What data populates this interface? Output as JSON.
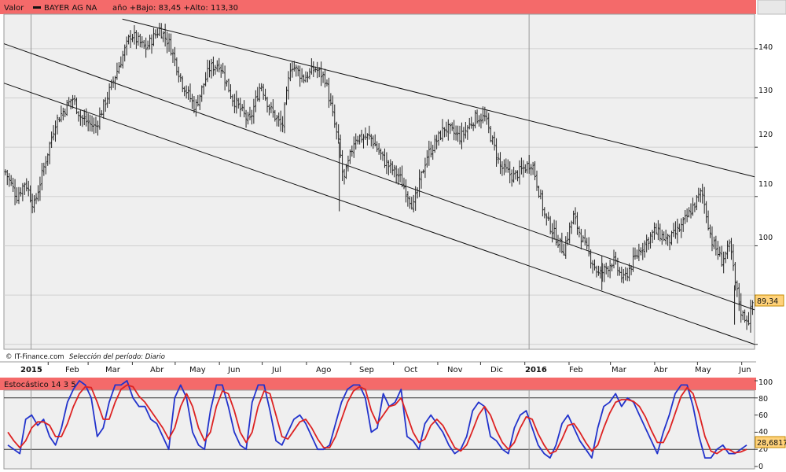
{
  "header": {
    "label": "Valor",
    "series_name": "BAYER AG  NA",
    "stats": "año +Bajo: 83,45 +Alto: 113,30",
    "color": "#f46a6a"
  },
  "footer": {
    "copyright": "© IT-Finance.com",
    "period": "Selección del período: Diario"
  },
  "chart_data": [
    {
      "type": "ohlc",
      "y_ticks": [
        "140",
        "130",
        "120",
        "110",
        "100"
      ],
      "last_value": "89,34",
      "ylim": [
        79,
        147
      ],
      "x_axis": {
        "year_labels": [
          "2015",
          "2016"
        ],
        "month_labels": [
          "Feb",
          "Mar",
          "Abr",
          "May",
          "Jun",
          "Jul",
          "Ago",
          "Sep",
          "Oct",
          "Nov",
          "Dic",
          "Feb",
          "Mar",
          "Abr",
          "May",
          "Jun"
        ]
      },
      "trend_lines": [
        {
          "from": [
            "2015-03-25",
            146
          ],
          "to": [
            "2016-06-10",
            114
          ]
        },
        {
          "from": [
            "2015-01-01",
            141
          ],
          "to": [
            "2016-06-10",
            87
          ]
        },
        {
          "from": [
            "2015-01-01",
            133
          ],
          "to": [
            "2016-06-10",
            80
          ]
        }
      ],
      "anchors": [
        [
          "2015-01-02",
          115
        ],
        [
          "2015-01-10",
          110
        ],
        [
          "2015-01-16",
          113
        ],
        [
          "2015-01-22",
          108
        ],
        [
          "2015-02-06",
          125
        ],
        [
          "2015-02-18",
          130
        ],
        [
          "2015-02-24",
          126
        ],
        [
          "2015-03-06",
          124
        ],
        [
          "2015-03-18",
          133
        ],
        [
          "2015-03-31",
          143
        ],
        [
          "2015-04-10",
          140
        ],
        [
          "2015-04-20",
          144
        ],
        [
          "2015-04-27",
          141
        ],
        [
          "2015-05-06",
          133
        ],
        [
          "2015-05-15",
          128
        ],
        [
          "2015-05-25",
          136
        ],
        [
          "2015-06-01",
          137
        ],
        [
          "2015-06-10",
          130
        ],
        [
          "2015-06-22",
          125
        ],
        [
          "2015-06-30",
          133
        ],
        [
          "2015-07-06",
          128
        ],
        [
          "2015-07-15",
          124
        ],
        [
          "2015-07-21",
          137
        ],
        [
          "2015-07-30",
          134
        ],
        [
          "2015-08-07",
          136
        ],
        [
          "2015-08-14",
          134
        ],
        [
          "2015-08-24",
          120
        ],
        [
          "2015-08-27",
          113
        ],
        [
          "2015-09-04",
          122
        ],
        [
          "2015-09-15",
          122
        ],
        [
          "2015-09-25",
          117
        ],
        [
          "2015-10-05",
          114
        ],
        [
          "2015-10-15",
          108
        ],
        [
          "2015-10-24",
          118
        ],
        [
          "2015-11-06",
          124
        ],
        [
          "2015-11-17",
          122
        ],
        [
          "2015-11-27",
          126
        ],
        [
          "2015-12-04",
          126
        ],
        [
          "2015-12-15",
          116
        ],
        [
          "2015-12-24",
          114
        ],
        [
          "2016-01-06",
          117
        ],
        [
          "2016-01-15",
          106
        ],
        [
          "2016-01-28",
          99
        ],
        [
          "2016-02-04",
          106
        ],
        [
          "2016-02-12",
          100
        ],
        [
          "2016-02-22",
          94
        ],
        [
          "2016-03-03",
          97
        ],
        [
          "2016-03-10",
          93
        ],
        [
          "2016-03-21",
          99
        ],
        [
          "2016-04-01",
          103
        ],
        [
          "2016-04-11",
          101
        ],
        [
          "2016-04-20",
          104
        ],
        [
          "2016-05-04",
          111
        ],
        [
          "2016-05-11",
          101
        ],
        [
          "2016-05-18",
          97
        ],
        [
          "2016-05-24",
          100
        ],
        [
          "2016-05-27",
          93
        ],
        [
          "2016-06-01",
          86
        ],
        [
          "2016-06-06",
          85
        ],
        [
          "2016-06-09",
          89
        ]
      ]
    },
    {
      "type": "line",
      "title": "Estocástico 14 3 5",
      "y_ticks": [
        "100",
        "80",
        "60",
        "40",
        "20",
        "0"
      ],
      "ylim": [
        0,
        100
      ],
      "last_value": "28,6817",
      "series": [
        {
          "color": "#2233cc",
          "values": [
            25,
            20,
            15,
            55,
            60,
            48,
            55,
            35,
            25,
            45,
            75,
            90,
            100,
            95,
            80,
            35,
            45,
            75,
            95,
            95,
            100,
            80,
            70,
            70,
            55,
            50,
            35,
            20,
            80,
            95,
            80,
            40,
            25,
            20,
            65,
            95,
            95,
            70,
            40,
            25,
            20,
            75,
            95,
            95,
            65,
            30,
            25,
            40,
            55,
            60,
            50,
            35,
            20,
            20,
            25,
            50,
            75,
            90,
            95,
            95,
            80,
            40,
            45,
            85,
            70,
            75,
            90,
            35,
            30,
            20,
            50,
            60,
            50,
            40,
            25,
            15,
            20,
            35,
            65,
            75,
            70,
            35,
            30,
            20,
            15,
            45,
            60,
            65,
            45,
            25,
            15,
            10,
            25,
            50,
            60,
            45,
            30,
            20,
            10,
            45,
            70,
            75,
            85,
            70,
            80,
            75,
            60,
            45,
            30,
            15,
            40,
            60,
            85,
            95,
            95,
            70,
            35,
            10,
            10,
            20,
            25,
            15,
            15,
            20,
            25
          ]
        },
        {
          "color": "#dd2222",
          "values": [
            40,
            30,
            22,
            30,
            45,
            52,
            52,
            48,
            35,
            35,
            50,
            70,
            85,
            93,
            92,
            75,
            55,
            55,
            75,
            90,
            95,
            93,
            82,
            75,
            65,
            55,
            45,
            32,
            45,
            70,
            85,
            70,
            45,
            30,
            40,
            70,
            88,
            85,
            65,
            40,
            28,
            40,
            70,
            88,
            85,
            60,
            35,
            32,
            42,
            52,
            55,
            45,
            32,
            22,
            22,
            35,
            55,
            75,
            88,
            93,
            90,
            65,
            50,
            60,
            70,
            72,
            80,
            60,
            40,
            28,
            32,
            48,
            55,
            48,
            35,
            22,
            18,
            25,
            42,
            60,
            70,
            60,
            42,
            28,
            20,
            28,
            45,
            58,
            55,
            38,
            25,
            15,
            18,
            32,
            48,
            50,
            40,
            28,
            18,
            25,
            45,
            62,
            75,
            78,
            78,
            76,
            70,
            58,
            42,
            28,
            28,
            42,
            62,
            82,
            92,
            85,
            62,
            35,
            18,
            15,
            20,
            20,
            16,
            17,
            20
          ]
        }
      ]
    }
  ],
  "colors": {
    "plot_bg": "#efefef",
    "price_bar": "#222222",
    "value_box": "#ffd27a"
  }
}
